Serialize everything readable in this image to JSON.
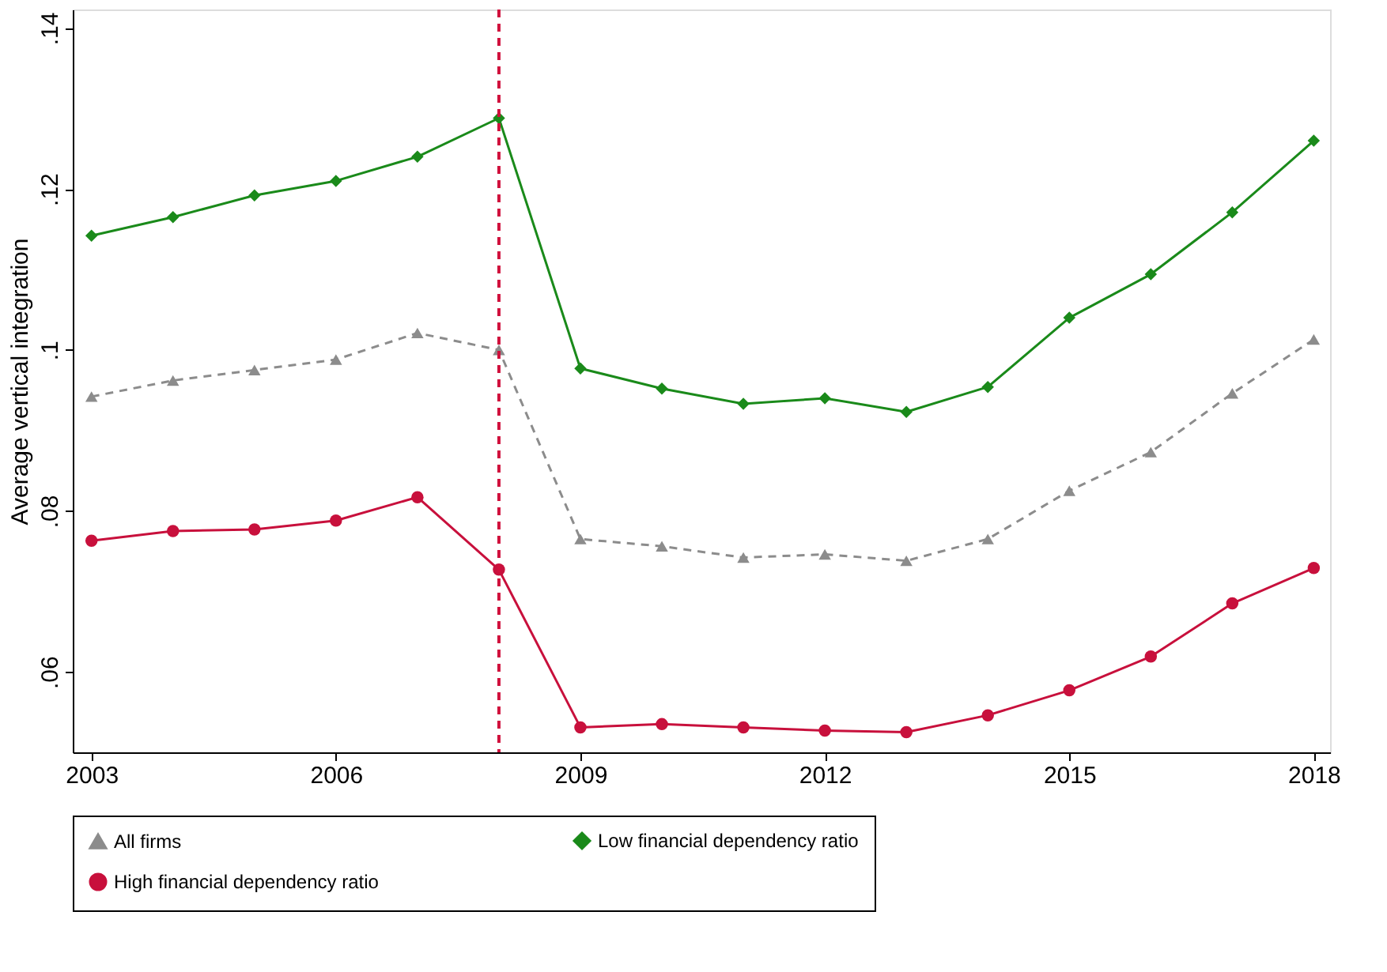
{
  "chart_data": {
    "type": "line",
    "ylabel": "Average vertical integration",
    "x": [
      2003,
      2004,
      2005,
      2006,
      2007,
      2008,
      2009,
      2010,
      2011,
      2012,
      2013,
      2014,
      2015,
      2016,
      2017,
      2018
    ],
    "series": [
      {
        "name": "All firms",
        "color": "#8c8c8c",
        "marker": "triangle",
        "line_style": "dashed",
        "values": [
          0.0942,
          0.0962,
          0.0975,
          0.0988,
          0.1021,
          0.1,
          0.0765,
          0.0756,
          0.0742,
          0.0746,
          0.0738,
          0.0765,
          0.0825,
          0.0873,
          0.0946,
          0.1013
        ]
      },
      {
        "name": "Low financial dependency ratio",
        "color": "#1a8a1a",
        "marker": "diamond",
        "line_style": "solid",
        "values": [
          0.1142,
          0.1165,
          0.1192,
          0.121,
          0.124,
          0.1288,
          0.0977,
          0.0952,
          0.0933,
          0.094,
          0.0923,
          0.0954,
          0.104,
          0.1094,
          0.1171,
          0.126
        ]
      },
      {
        "name": "High financial dependency ratio",
        "color": "#c8103c",
        "marker": "circle",
        "line_style": "solid",
        "values": [
          0.0763,
          0.0775,
          0.0777,
          0.0788,
          0.0817,
          0.0727,
          0.0531,
          0.0535,
          0.0531,
          0.0527,
          0.0525,
          0.0546,
          0.0577,
          0.0619,
          0.0685,
          0.0729
        ]
      }
    ],
    "xlim": [
      2002.77,
      2018.2
    ],
    "xticks": [
      2003,
      2006,
      2009,
      2012,
      2015,
      2018
    ],
    "ylim": [
      0.05,
      0.1423
    ],
    "yticks": [
      {
        "value": 0.06,
        "label": ".06"
      },
      {
        "value": 0.08,
        "label": ".08"
      },
      {
        "value": 0.1,
        "label": ".1"
      },
      {
        "value": 0.12,
        "label": ".12"
      },
      {
        "value": 0.14,
        "label": ".14"
      }
    ],
    "ref_lines": [
      {
        "axis": "x",
        "value": 2008,
        "color": "#d0103c",
        "line_style": "dashed"
      }
    ],
    "grid": false,
    "legend": "bottom"
  }
}
